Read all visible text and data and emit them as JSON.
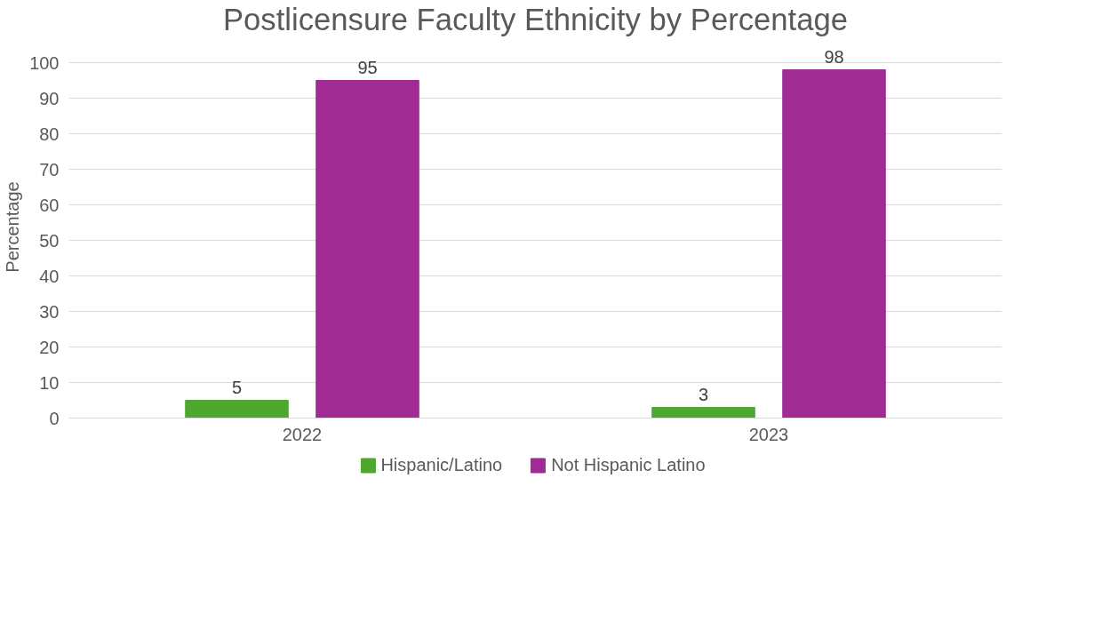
{
  "chart_data": {
    "type": "bar",
    "title": "Postlicensure Faculty Ethnicity by Percentage",
    "ylabel": "Percentage",
    "categories": [
      "2022",
      "2023"
    ],
    "series": [
      {
        "name": "Hispanic/Latino",
        "color": "#4ea72e",
        "values": [
          5,
          3
        ]
      },
      {
        "name": "Not Hispanic Latino",
        "color": "#a02b93",
        "values": [
          95,
          98
        ]
      }
    ],
    "ylim": [
      0,
      100
    ],
    "yticks": [
      0,
      10,
      20,
      30,
      40,
      50,
      60,
      70,
      80,
      90,
      100
    ],
    "grid": "y",
    "legend": "bottom",
    "data_labels": true
  }
}
